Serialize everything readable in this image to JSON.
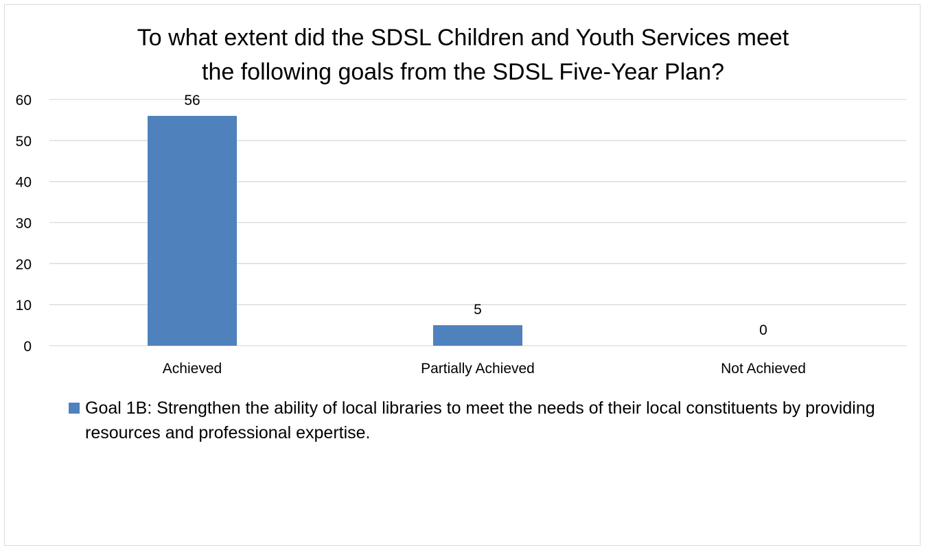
{
  "chart_data": {
    "type": "bar",
    "title_lines": [
      "To what extent did the SDSL Children and Youth Services meet",
      "the following goals from the SDSL Five-Year Plan?"
    ],
    "categories": [
      "Achieved",
      "Partially Achieved",
      "Not Achieved"
    ],
    "series": [
      {
        "name": "Goal 1B: Strengthen the ability of local libraries to meet the needs of their local constituents by providing resources and professional expertise.",
        "values": [
          56,
          5,
          0
        ],
        "color": "#4f81bd"
      }
    ],
    "data_labels": [
      "56",
      "5",
      "0"
    ],
    "y_ticks": [
      "0",
      "10",
      "20",
      "30",
      "40",
      "50",
      "60"
    ],
    "ylim": [
      0,
      60
    ],
    "grid": true,
    "legend_position": "bottom"
  }
}
